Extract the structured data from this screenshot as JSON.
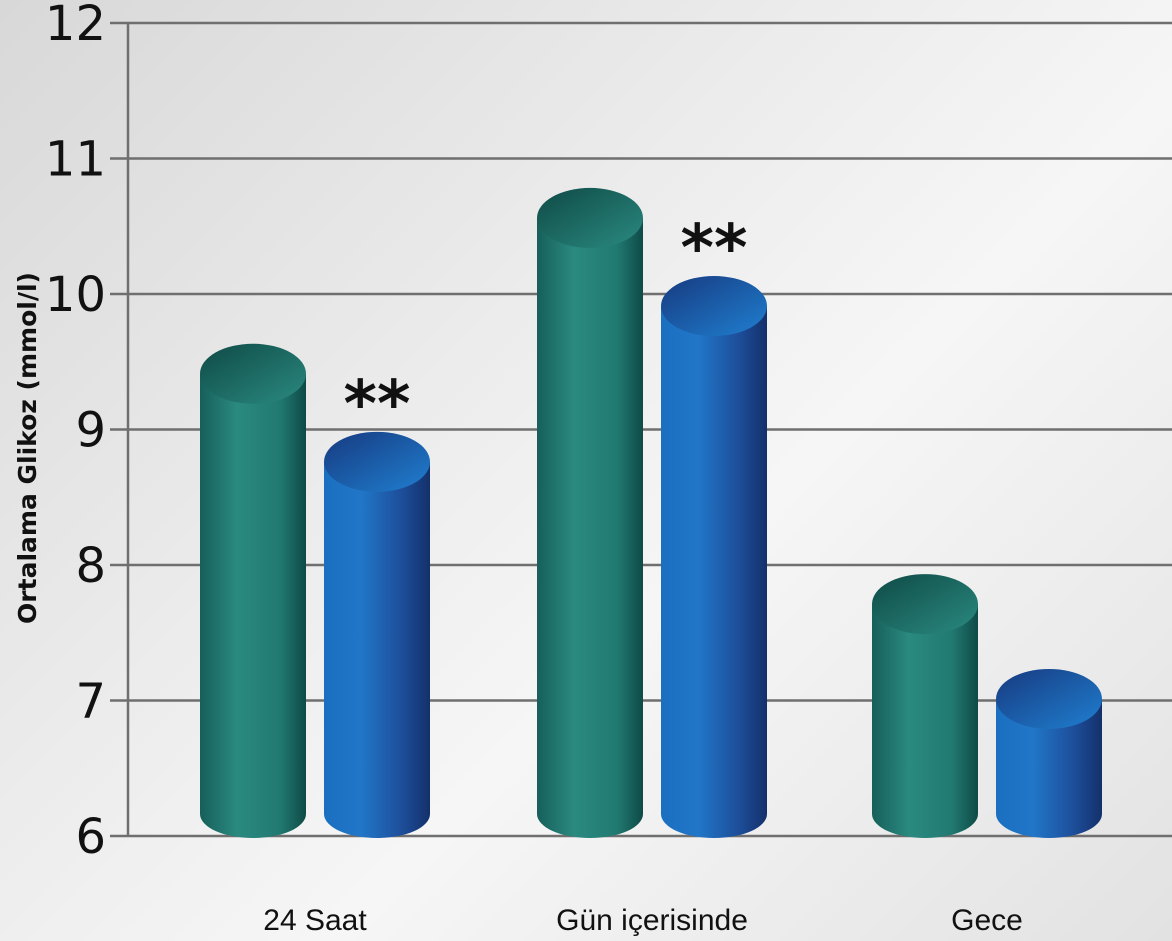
{
  "chart_data": {
    "type": "bar",
    "title": "",
    "xlabel": "",
    "ylabel": "Ortalama Glikoz (mmol/l)",
    "ylim": [
      6,
      12
    ],
    "yticks": [
      6,
      7,
      8,
      9,
      10,
      11,
      12
    ],
    "grid": true,
    "categories": [
      "24 Saat",
      "Gün içerisinde",
      "Gece"
    ],
    "series": [
      {
        "color": "#1f7f78",
        "values": [
          9.5,
          10.65,
          7.8
        ]
      },
      {
        "color": "#1f5fb0",
        "values": [
          8.85,
          10.0,
          7.1
        ]
      }
    ],
    "annotations": [
      "**",
      "**",
      ""
    ]
  }
}
